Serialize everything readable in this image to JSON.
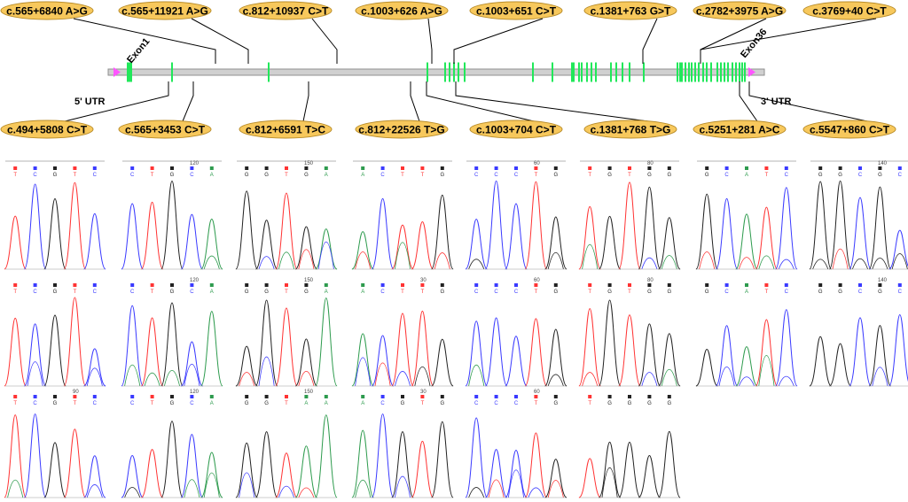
{
  "gene_map": {
    "exon_labels": [
      "Exon1",
      "Exon36"
    ],
    "utr_labels": [
      "5' UTR",
      "3' UTR"
    ],
    "colors": {
      "exon": "#21e85a",
      "line": "#a9a9a9",
      "utr_marker": "#ff55ff",
      "ellipse_fill": "#f7c85c",
      "ellipse_stroke": "#b98d2a"
    }
  },
  "mutations_top": [
    "c.565+6840 A>G",
    "c.565+11921 A>G",
    "c.812+10937 C>T",
    "c.1003+626 A>G",
    "c.1003+651 C>T",
    "c.1381+763 G>T",
    "c.2782+3975 A>G",
    "c.3769+40 C>T"
  ],
  "mutations_bottom": [
    "c.494+5808 C>T",
    "c.565+3453 C>T",
    "c.812+6591 T>C",
    "c.812+22526 T>G",
    "c.1003+704 C>T",
    "c.1381+768 T>G",
    "c.5251+281 A>C",
    "c.5547+860 C>T"
  ],
  "chromatograms": {
    "trace_colors": {
      "A": "#2e9b4e",
      "C": "#3a3aff",
      "G": "#222222",
      "T": "#ff3333"
    },
    "columns": [
      {
        "rows": [
          {
            "bases": [
              "T",
              "C",
              "G",
              "T",
              "C"
            ],
            "pos": ""
          },
          {
            "bases": [
              "T",
              "C",
              "G",
              "T",
              "C"
            ],
            "pos": ""
          },
          {
            "bases": [
              "T",
              "C",
              "G",
              "T",
              "C"
            ],
            "pos": "90"
          }
        ]
      },
      {
        "rows": [
          {
            "bases": [
              "C",
              "T",
              "G",
              "C",
              "A"
            ],
            "pos": "120"
          },
          {
            "bases": [
              "C",
              "T",
              "G",
              "C",
              "A"
            ],
            "pos": "120"
          },
          {
            "bases": [
              "C",
              "T",
              "G",
              "C",
              "A"
            ],
            "pos": "120"
          }
        ]
      },
      {
        "rows": [
          {
            "bases": [
              "G",
              "G",
              "T",
              "G",
              "A"
            ],
            "pos": "150"
          },
          {
            "bases": [
              "G",
              "G",
              "T",
              "G",
              "A"
            ],
            "pos": "150"
          },
          {
            "bases": [
              "G",
              "G",
              "T",
              "A",
              "A"
            ],
            "pos": "150"
          }
        ]
      },
      {
        "rows": [
          {
            "bases": [
              "A",
              "C",
              "T",
              "T",
              "G"
            ],
            "pos": ""
          },
          {
            "bases": [
              "A",
              "C",
              "T",
              "T",
              "G"
            ],
            "pos": "30"
          },
          {
            "bases": [
              "A",
              "C",
              "G",
              "T",
              "G"
            ],
            "pos": "30"
          }
        ]
      },
      {
        "rows": [
          {
            "bases": [
              "C",
              "C",
              "C",
              "T",
              "G"
            ],
            "pos": "60"
          },
          {
            "bases": [
              "C",
              "C",
              "C",
              "T",
              "G"
            ],
            "pos": "60"
          },
          {
            "bases": [
              "C",
              "C",
              "C",
              "T",
              "G"
            ],
            "pos": "60"
          }
        ]
      },
      {
        "rows": [
          {
            "bases": [
              "T",
              "G",
              "T",
              "G",
              "G"
            ],
            "pos": "80"
          },
          {
            "bases": [
              "T",
              "G",
              "T",
              "G",
              "G"
            ],
            "pos": "80"
          },
          {
            "bases": [
              "T",
              "G",
              "G",
              "G",
              "G"
            ],
            "pos": ""
          }
        ]
      },
      {
        "rows": [
          {
            "bases": [
              "G",
              "C",
              "A",
              "T",
              "C"
            ],
            "pos": ""
          },
          {
            "bases": [
              "G",
              "C",
              "A",
              "T",
              "C"
            ],
            "pos": ""
          }
        ]
      },
      {
        "rows": [
          {
            "bases": [
              "G",
              "G",
              "C",
              "G",
              "C"
            ],
            "pos": "140"
          },
          {
            "bases": [
              "G",
              "G",
              "C",
              "G",
              "C"
            ],
            "pos": "140"
          }
        ]
      }
    ]
  }
}
